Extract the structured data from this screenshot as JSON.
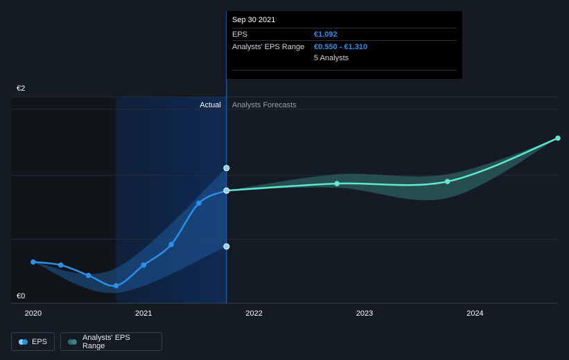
{
  "chart_data": {
    "type": "line",
    "y_axis": {
      "ticks": [
        {
          "value": 0,
          "label": "€0"
        },
        {
          "value": 2,
          "label": "€2"
        }
      ],
      "ylim": [
        0,
        2
      ],
      "grid": true
    },
    "x_axis": {
      "ticks": [
        {
          "value": 2020,
          "label": "2020"
        },
        {
          "value": 2021,
          "label": "2021"
        },
        {
          "value": 2022,
          "label": "2022"
        },
        {
          "value": 2023,
          "label": "2023"
        },
        {
          "value": 2024,
          "label": "2024"
        }
      ],
      "xlim": [
        2019.8,
        2024.75
      ]
    },
    "divider_x": 2021.75,
    "region_labels": {
      "actual": "Actual",
      "forecast": "Analysts Forecasts"
    },
    "series": [
      {
        "name": "EPS",
        "color": "#2c8fe8",
        "points": [
          {
            "x": 2020.0,
            "y": 0.4
          },
          {
            "x": 2020.25,
            "y": 0.37
          },
          {
            "x": 2020.5,
            "y": 0.27
          },
          {
            "x": 2020.75,
            "y": 0.17
          },
          {
            "x": 2021.0,
            "y": 0.37
          },
          {
            "x": 2021.25,
            "y": 0.57
          },
          {
            "x": 2021.5,
            "y": 0.97
          },
          {
            "x": 2021.75,
            "y": 1.092
          }
        ],
        "range": [
          {
            "x": 2020.0,
            "lo": 0.4,
            "hi": 0.4
          },
          {
            "x": 2020.75,
            "lo": 0.1,
            "hi": 0.34
          },
          {
            "x": 2021.75,
            "lo": 0.55,
            "hi": 1.31
          }
        ]
      },
      {
        "name": "Analysts' EPS Range",
        "color": "#5ee8cf",
        "points": [
          {
            "x": 2021.75,
            "y": 1.092
          },
          {
            "x": 2022.75,
            "y": 1.16
          },
          {
            "x": 2023.75,
            "y": 1.18
          },
          {
            "x": 2024.75,
            "y": 1.6
          }
        ],
        "range": [
          {
            "x": 2021.75,
            "lo": 1.092,
            "hi": 1.092
          },
          {
            "x": 2022.75,
            "lo": 1.12,
            "hi": 1.25
          },
          {
            "x": 2023.75,
            "lo": 1.02,
            "hi": 1.25
          },
          {
            "x": 2024.75,
            "lo": 1.6,
            "hi": 1.6
          }
        ]
      }
    ],
    "range_markers": [
      1.31,
      0.55
    ],
    "legend": [
      {
        "label": "EPS",
        "colors": [
          "#2c8fe8",
          "#8ad0f5"
        ]
      },
      {
        "label": "Analysts' EPS Range",
        "colors": [
          "#2f6a74",
          "#3d7f8a"
        ]
      }
    ],
    "tooltip": {
      "title": "Sep 30 2021",
      "rows": [
        {
          "label": "EPS",
          "value": "€1.092"
        },
        {
          "label": "Analysts' EPS Range",
          "value": "€0.550 - €1.310"
        }
      ],
      "sub": "5 Analysts"
    }
  }
}
